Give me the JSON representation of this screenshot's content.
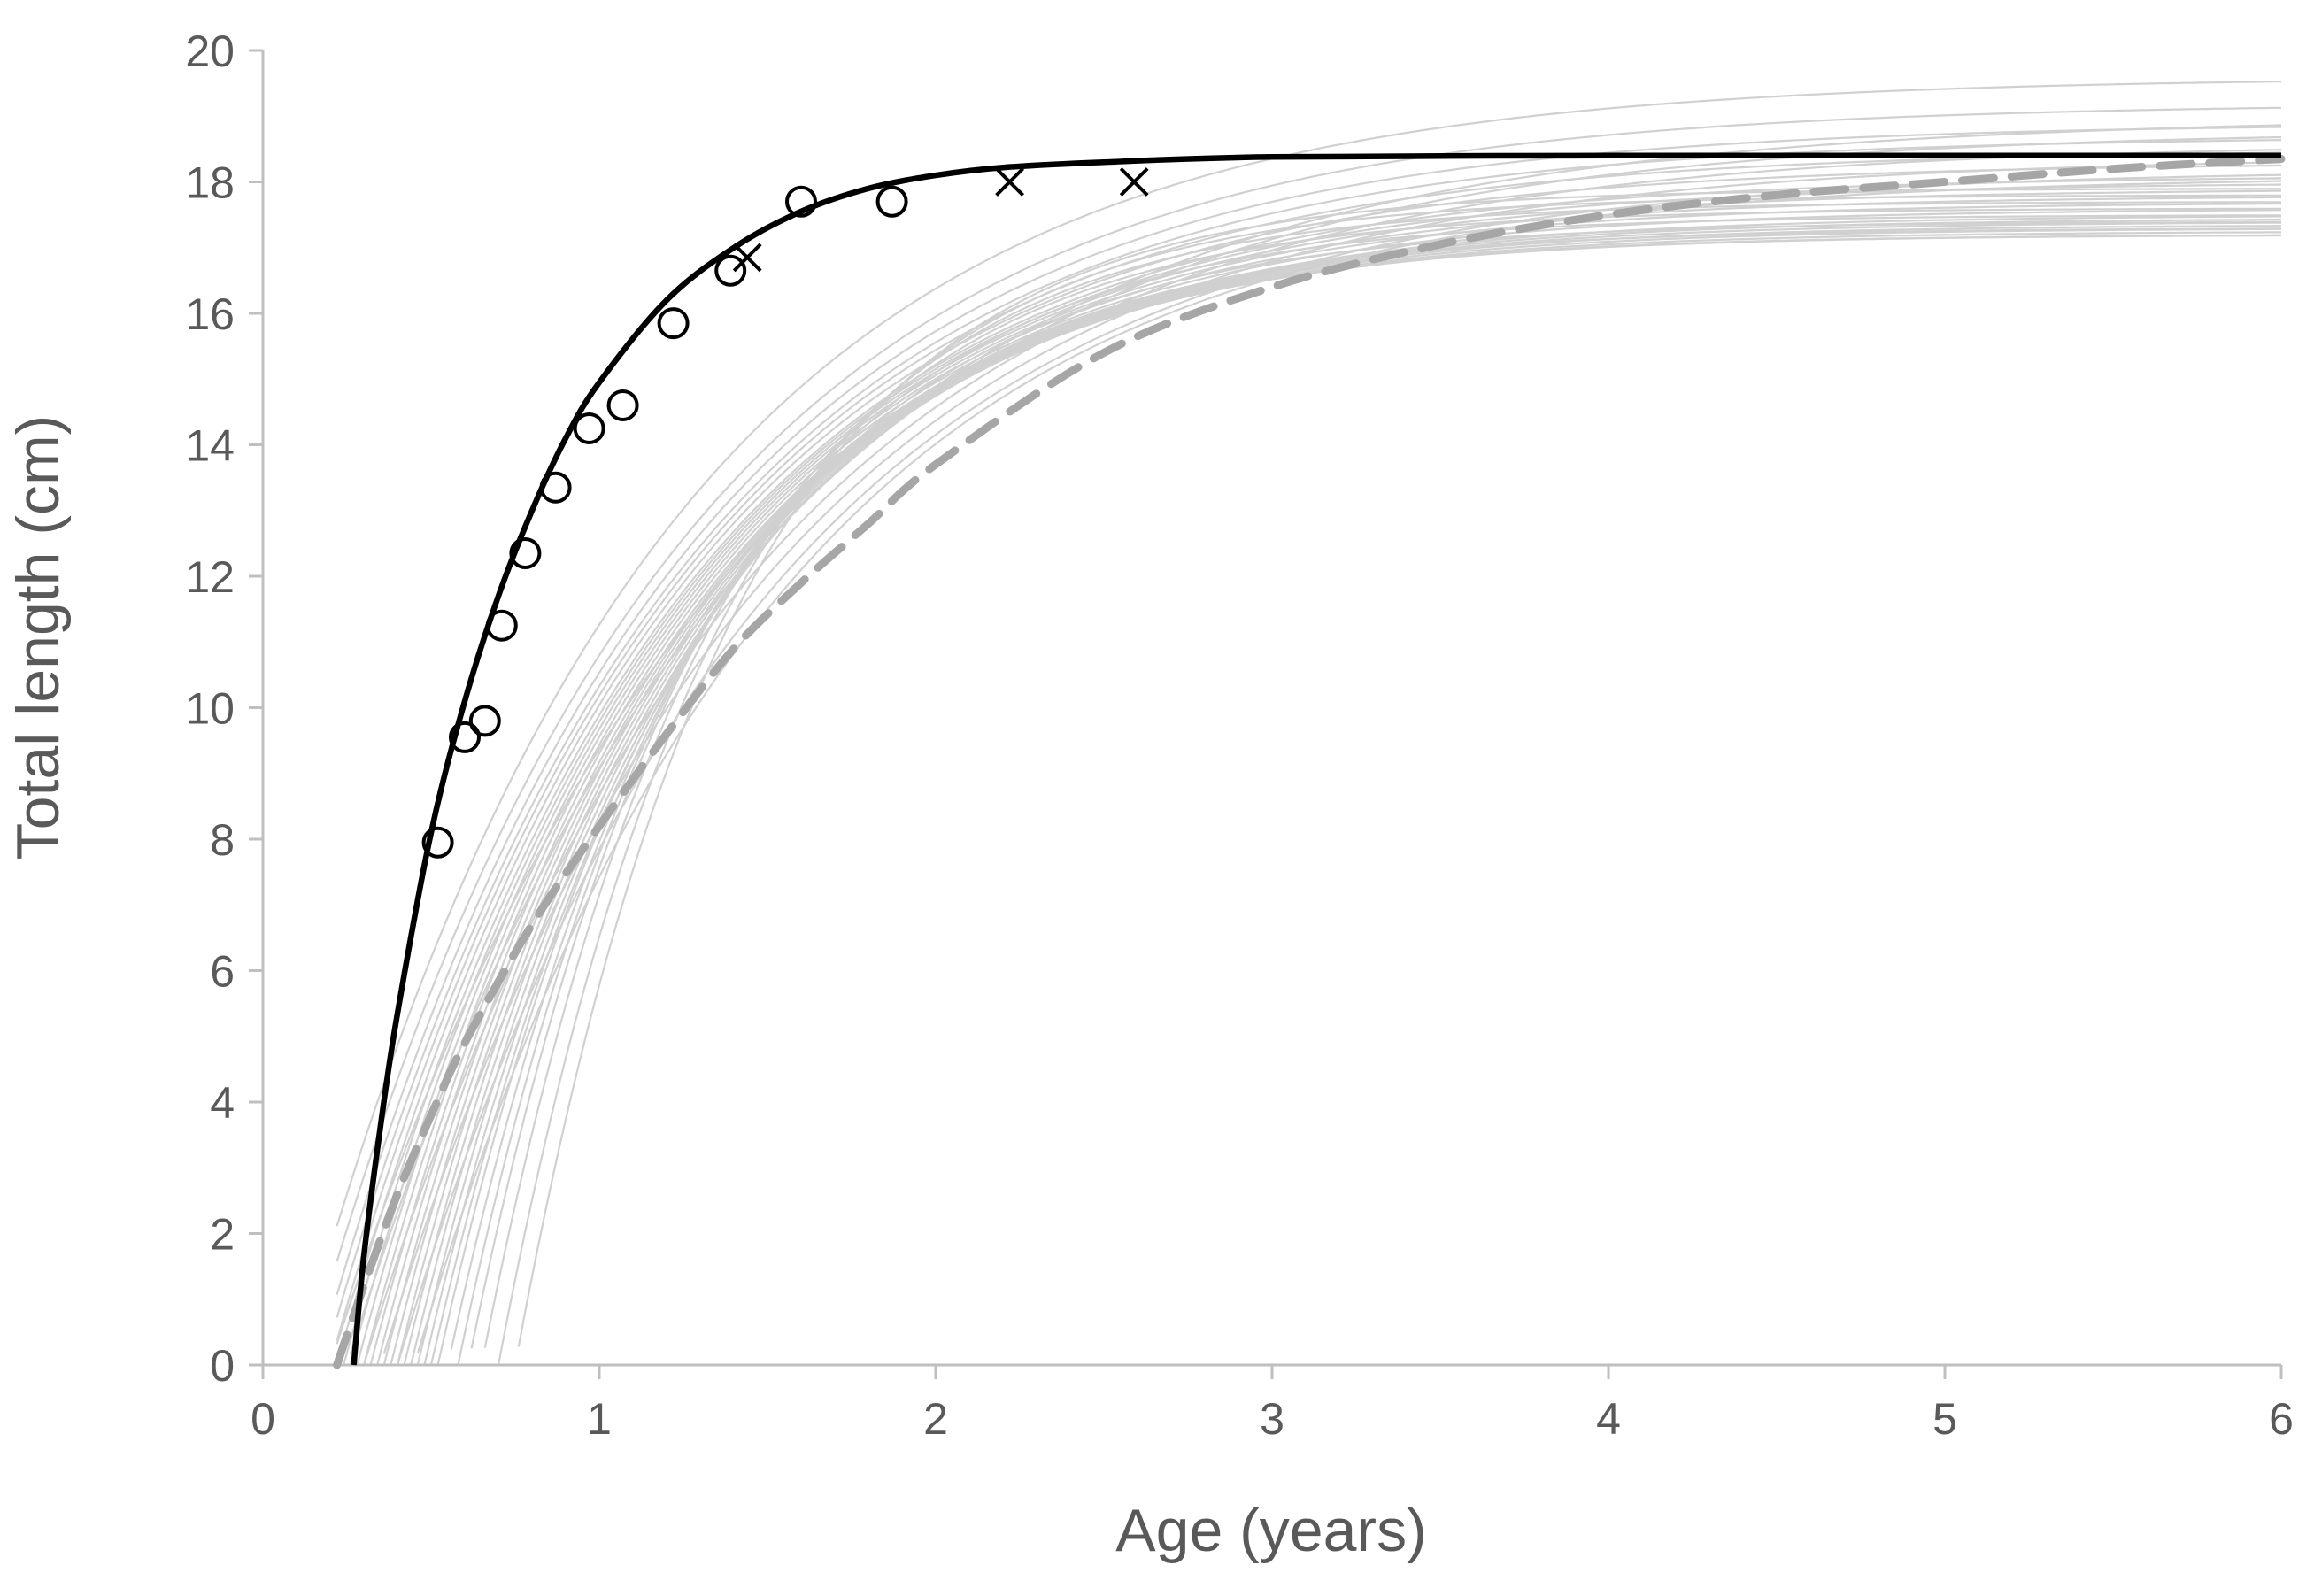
{
  "chart_data": {
    "type": "line",
    "title": "",
    "xlabel": "Age (years)",
    "ylabel": "Total length (cm)",
    "xlim": [
      0,
      6
    ],
    "ylim": [
      0,
      20
    ],
    "xticks": [
      0,
      1,
      2,
      3,
      4,
      5,
      6
    ],
    "yticks": [
      0,
      2,
      4,
      6,
      8,
      10,
      12,
      14,
      16,
      18,
      20
    ],
    "grid": false,
    "legend": "none",
    "colors": {
      "axis": "#bfbfbf",
      "text": "#595959",
      "fitted_curve": "#000000",
      "mean_curve": "#a6a6a6",
      "individual_curves": "#d0d0d0",
      "markers": "#000000"
    },
    "fitted_curve": {
      "style": "solid-black",
      "x": [
        0.27,
        0.3,
        0.35,
        0.4,
        0.5,
        0.6,
        0.7,
        0.8,
        0.9,
        1.0,
        1.2,
        1.4,
        1.6,
        1.8,
        2.0,
        2.2,
        2.5,
        3.0,
        4.0,
        5.0,
        6.0
      ],
      "y": [
        0.0,
        1.65,
        3.65,
        5.35,
        8.1,
        10.1,
        11.7,
        13.0,
        14.1,
        14.95,
        16.2,
        17.0,
        17.55,
        17.9,
        18.1,
        18.22,
        18.3,
        18.38,
        18.4,
        18.4,
        18.4
      ]
    },
    "mean_curve": {
      "style": "dashed-gray",
      "x": [
        0.22,
        0.3,
        0.4,
        0.5,
        0.6,
        0.8,
        1.0,
        1.2,
        1.4,
        1.6,
        1.8,
        2.0,
        2.5,
        3.0,
        3.5,
        4.0,
        4.5,
        5.0,
        5.5,
        6.0
      ],
      "y": [
        0.0,
        1.2,
        2.6,
        3.8,
        4.9,
        6.7,
        8.2,
        9.6,
        10.9,
        11.9,
        12.8,
        13.7,
        15.4,
        16.4,
        17.05,
        17.5,
        17.8,
        18.0,
        18.2,
        18.35
      ]
    },
    "individual_curves": [
      {
        "t0": 0.1,
        "k": 0.95,
        "linf": 19.6
      },
      {
        "t0": 0.13,
        "k": 0.95,
        "linf": 19.2
      },
      {
        "t0": 0.16,
        "k": 0.97,
        "linf": 18.9
      },
      {
        "t0": 0.18,
        "k": 0.98,
        "linf": 18.7
      },
      {
        "t0": 0.2,
        "k": 1.0,
        "linf": 18.5
      },
      {
        "t0": 0.22,
        "k": 1.02,
        "linf": 18.3
      },
      {
        "t0": 0.24,
        "k": 1.04,
        "linf": 18.1
      },
      {
        "t0": 0.26,
        "k": 1.06,
        "linf": 18.0
      },
      {
        "t0": 0.28,
        "k": 1.08,
        "linf": 17.9
      },
      {
        "t0": 0.3,
        "k": 1.1,
        "linf": 17.8
      },
      {
        "t0": 0.32,
        "k": 1.12,
        "linf": 17.7
      },
      {
        "t0": 0.34,
        "k": 1.14,
        "linf": 17.6
      },
      {
        "t0": 0.36,
        "k": 1.16,
        "linf": 17.5
      },
      {
        "t0": 0.38,
        "k": 1.18,
        "linf": 17.45
      },
      {
        "t0": 0.4,
        "k": 1.2,
        "linf": 17.4
      },
      {
        "t0": 0.42,
        "k": 1.22,
        "linf": 17.35
      },
      {
        "t0": 0.44,
        "k": 1.24,
        "linf": 17.3
      },
      {
        "t0": 0.46,
        "k": 1.26,
        "linf": 17.25
      },
      {
        "t0": 0.48,
        "k": 1.28,
        "linf": 17.2
      },
      {
        "t0": 0.5,
        "k": 1.3,
        "linf": 17.2
      },
      {
        "t0": 0.52,
        "k": 1.33,
        "linf": 17.3
      },
      {
        "t0": 0.55,
        "k": 1.36,
        "linf": 17.4
      },
      {
        "t0": 0.58,
        "k": 1.4,
        "linf": 17.5
      },
      {
        "t0": 0.61,
        "k": 1.44,
        "linf": 17.6
      },
      {
        "t0": 0.65,
        "k": 1.48,
        "linf": 17.7
      },
      {
        "t0": 0.7,
        "k": 1.52,
        "linf": 17.8
      },
      {
        "t0": 0.75,
        "k": 1.56,
        "linf": 17.9
      },
      {
        "t0": 0.2,
        "k": 0.85,
        "linf": 19.0
      },
      {
        "t0": 0.25,
        "k": 0.88,
        "linf": 18.8
      },
      {
        "t0": 0.3,
        "k": 0.9,
        "linf": 18.6
      },
      {
        "t0": 0.35,
        "k": 0.92,
        "linf": 18.4
      },
      {
        "t0": 0.4,
        "k": 0.94,
        "linf": 18.2
      },
      {
        "t0": 0.45,
        "k": 0.96,
        "linf": 18.1
      }
    ],
    "circle_points": [
      {
        "x": 0.52,
        "y": 7.95
      },
      {
        "x": 0.6,
        "y": 9.55
      },
      {
        "x": 0.66,
        "y": 9.8
      },
      {
        "x": 0.71,
        "y": 11.25
      },
      {
        "x": 0.78,
        "y": 12.35
      },
      {
        "x": 0.87,
        "y": 13.35
      },
      {
        "x": 0.97,
        "y": 14.25
      },
      {
        "x": 1.07,
        "y": 14.6
      },
      {
        "x": 1.22,
        "y": 15.85
      },
      {
        "x": 1.39,
        "y": 16.65
      },
      {
        "x": 1.6,
        "y": 17.7
      },
      {
        "x": 1.87,
        "y": 17.7
      }
    ],
    "cross_points": [
      {
        "x": 1.44,
        "y": 16.85
      },
      {
        "x": 2.22,
        "y": 18.0
      },
      {
        "x": 2.59,
        "y": 18.0
      }
    ]
  }
}
